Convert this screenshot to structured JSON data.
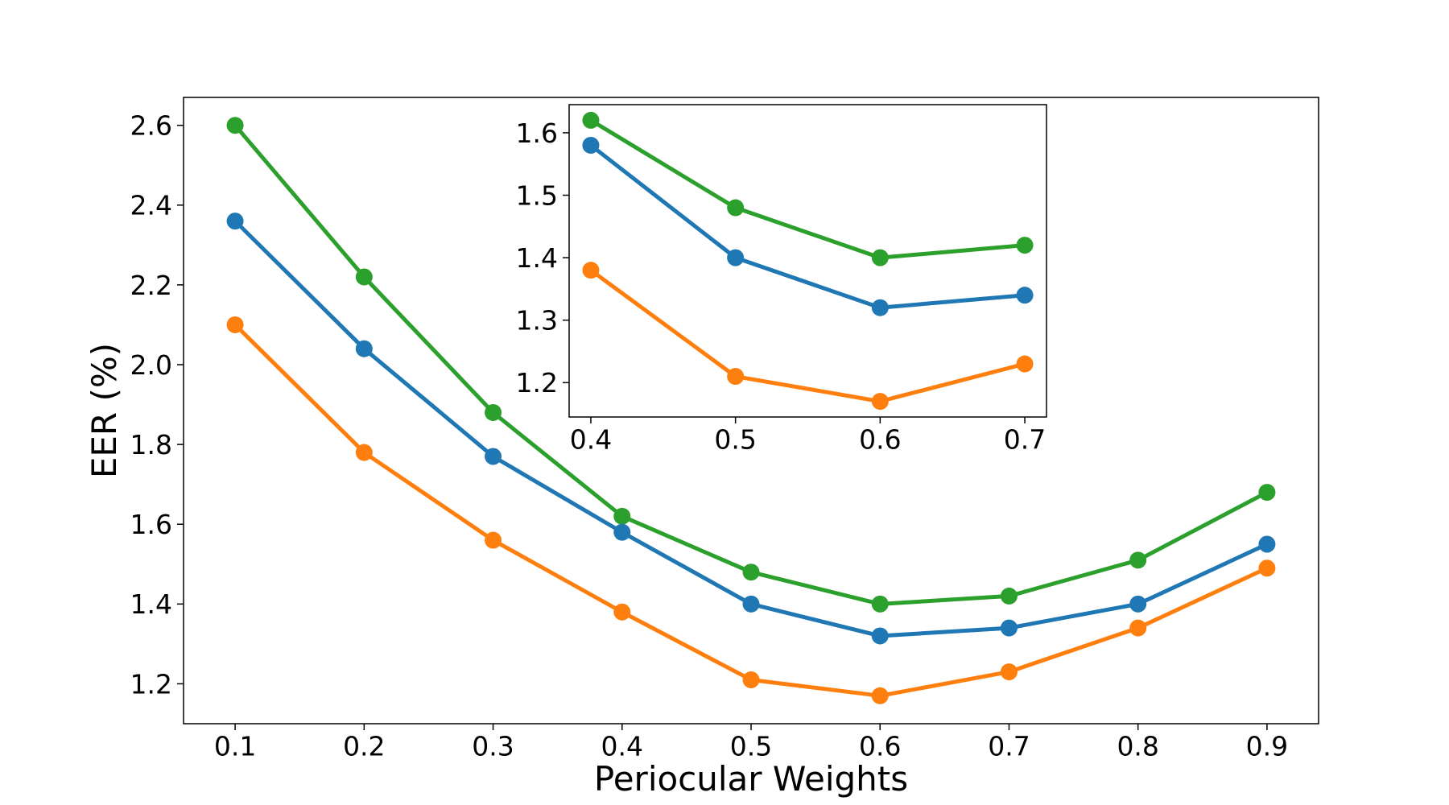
{
  "chart_data": [
    {
      "type": "line",
      "role": "main",
      "xlabel": "Periocular Weights",
      "ylabel": "EER (%)",
      "x": [
        0.1,
        0.2,
        0.3,
        0.4,
        0.5,
        0.6,
        0.7,
        0.8,
        0.9
      ],
      "xlim": [
        0.06,
        0.94
      ],
      "ylim": [
        1.1,
        2.67
      ],
      "xticks": [
        "0.1",
        "0.2",
        "0.3",
        "0.4",
        "0.5",
        "0.6",
        "0.7",
        "0.8",
        "0.9"
      ],
      "yticks": [
        "1.2",
        "1.4",
        "1.6",
        "1.8",
        "2.0",
        "2.2",
        "2.4",
        "2.6"
      ],
      "ytick_values": [
        1.2,
        1.4,
        1.6,
        1.8,
        2.0,
        2.2,
        2.4,
        2.6
      ],
      "grid": false,
      "series": [
        {
          "name": "series-green",
          "color": "#2ca02c",
          "values": [
            2.6,
            2.22,
            1.88,
            1.62,
            1.48,
            1.4,
            1.42,
            1.51,
            1.68
          ]
        },
        {
          "name": "series-blue",
          "color": "#1f77b4",
          "values": [
            2.36,
            2.04,
            1.77,
            1.58,
            1.4,
            1.32,
            1.34,
            1.4,
            1.55
          ]
        },
        {
          "name": "series-orange",
          "color": "#ff7f0e",
          "values": [
            2.1,
            1.78,
            1.56,
            1.38,
            1.21,
            1.17,
            1.23,
            1.34,
            1.49
          ]
        }
      ]
    },
    {
      "type": "line",
      "role": "inset",
      "xlabel": "",
      "ylabel": "",
      "x": [
        0.4,
        0.5,
        0.6,
        0.7
      ],
      "xlim": [
        0.385,
        0.715
      ],
      "ylim": [
        1.145,
        1.645
      ],
      "xticks": [
        "0.4",
        "0.5",
        "0.6",
        "0.7"
      ],
      "yticks": [
        "1.2",
        "1.3",
        "1.4",
        "1.5",
        "1.6"
      ],
      "ytick_values": [
        1.2,
        1.3,
        1.4,
        1.5,
        1.6
      ],
      "grid": false,
      "series": [
        {
          "name": "series-green",
          "color": "#2ca02c",
          "values": [
            1.62,
            1.48,
            1.4,
            1.42
          ]
        },
        {
          "name": "series-blue",
          "color": "#1f77b4",
          "values": [
            1.58,
            1.4,
            1.32,
            1.34
          ]
        },
        {
          "name": "series-orange",
          "color": "#ff7f0e",
          "values": [
            1.38,
            1.21,
            1.17,
            1.23
          ]
        }
      ]
    }
  ]
}
